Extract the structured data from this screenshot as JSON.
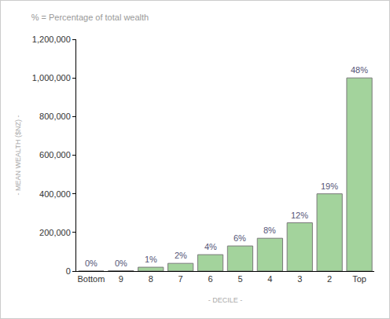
{
  "chart_data": {
    "type": "bar",
    "subtitle": "% = Percentage of total wealth",
    "x_label": "- DECILE -",
    "y_label": "- MEAN WEALTH ($NZ) -",
    "categories": [
      "Bottom",
      "9",
      "8",
      "7",
      "6",
      "5",
      "4",
      "3",
      "2",
      "Top"
    ],
    "values": [
      0,
      2000,
      20000,
      40000,
      85000,
      130000,
      170000,
      250000,
      400000,
      1000000
    ],
    "share_labels": [
      "0%",
      "0%",
      "1%",
      "2%",
      "4%",
      "6%",
      "8%",
      "12%",
      "19%",
      "48%"
    ],
    "color": "#a3d39c",
    "ylim": [
      0,
      1200000
    ],
    "yticks": [
      0,
      {
        "value": 200000,
        "label": "200,000"
      },
      {
        "value": 400000,
        "label": "400,000"
      },
      {
        "value": 600000,
        "label": "600,000"
      },
      {
        "value": 800000,
        "label": "800,000"
      },
      {
        "value": 1000000,
        "label": "1,000,000"
      },
      {
        "value": 1200000,
        "label": "1,200,000"
      }
    ],
    "grid": false
  }
}
